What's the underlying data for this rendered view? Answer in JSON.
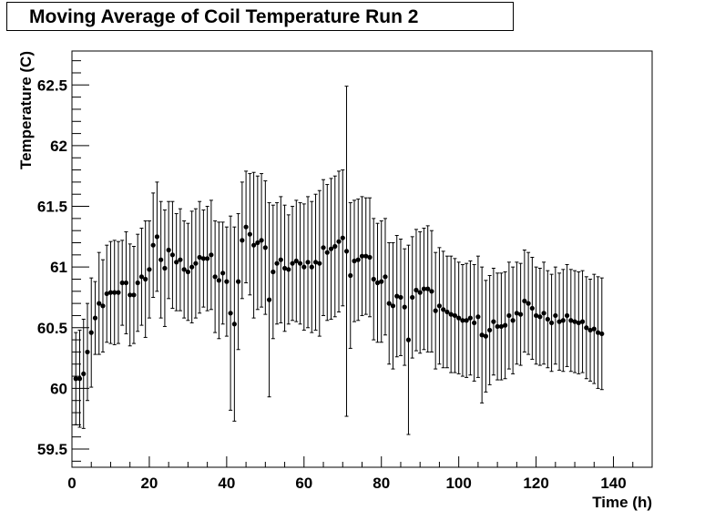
{
  "chart_data": {
    "type": "scatter",
    "title": "Moving Average of Coil Temperature Run 2",
    "xlabel": "Time (h)",
    "ylabel": "Temperature (C)",
    "xlim": [
      0,
      150
    ],
    "ylim": [
      59.35,
      62.78
    ],
    "xticks": [
      "0",
      "20",
      "40",
      "60",
      "80",
      "100",
      "120",
      "140"
    ],
    "yticks": [
      "59.5",
      "60",
      "60.5",
      "61",
      "61.5",
      "62",
      "62.5"
    ],
    "grid": false,
    "series": [
      {
        "marker": "filled-circle",
        "color": "#000000",
        "x": [
          1,
          2,
          3,
          4,
          5,
          6,
          7,
          8,
          9,
          10,
          11,
          12,
          13,
          14,
          15,
          16,
          17,
          18,
          19,
          20,
          21,
          22,
          23,
          24,
          25,
          26,
          27,
          28,
          29,
          30,
          31,
          32,
          33,
          34,
          35,
          36,
          37,
          38,
          39,
          40,
          41,
          42,
          43,
          44,
          45,
          46,
          47,
          48,
          49,
          50,
          51,
          52,
          53,
          54,
          55,
          56,
          57,
          58,
          59,
          60,
          61,
          62,
          63,
          64,
          65,
          66,
          67,
          68,
          69,
          70,
          71,
          72,
          73,
          74,
          75,
          76,
          77,
          78,
          79,
          80,
          81,
          82,
          83,
          84,
          85,
          86,
          87,
          88,
          89,
          90,
          91,
          92,
          93,
          94,
          95,
          96,
          97,
          98,
          99,
          100,
          101,
          102,
          103,
          104,
          105,
          106,
          107,
          108,
          109,
          110,
          111,
          112,
          113,
          114,
          115,
          116,
          117,
          118,
          119,
          120,
          121,
          122,
          123,
          124,
          125,
          126,
          127,
          128,
          129,
          130,
          131,
          132,
          133,
          134,
          135,
          136,
          137
        ],
        "y": [
          60.08,
          60.08,
          60.12,
          60.3,
          60.46,
          60.58,
          60.7,
          60.68,
          60.78,
          60.79,
          60.79,
          60.79,
          60.87,
          60.87,
          60.77,
          60.77,
          60.87,
          60.92,
          60.9,
          60.98,
          61.18,
          61.25,
          61.06,
          60.99,
          61.14,
          61.1,
          61.04,
          61.06,
          60.98,
          60.96,
          61.0,
          61.03,
          61.08,
          61.07,
          61.07,
          61.1,
          60.92,
          60.89,
          60.95,
          60.88,
          60.62,
          60.53,
          60.88,
          61.22,
          61.33,
          61.27,
          61.18,
          61.2,
          61.22,
          61.16,
          60.73,
          60.96,
          61.03,
          61.06,
          60.99,
          60.98,
          61.03,
          61.05,
          61.03,
          61.0,
          61.04,
          61.0,
          61.04,
          61.03,
          61.16,
          61.12,
          61.15,
          61.17,
          61.21,
          61.24,
          61.13,
          60.93,
          61.05,
          61.06,
          61.09,
          61.09,
          61.08,
          60.9,
          60.87,
          60.88,
          60.92,
          60.7,
          60.68,
          60.76,
          60.75,
          60.67,
          60.4,
          60.75,
          60.81,
          60.79,
          60.82,
          60.82,
          60.8,
          60.64,
          60.68,
          60.65,
          60.63,
          60.61,
          60.6,
          60.58,
          60.56,
          60.56,
          60.58,
          60.54,
          60.59,
          60.44,
          60.43,
          60.48,
          60.55,
          60.51,
          60.51,
          60.52,
          60.6,
          60.56,
          60.62,
          60.61,
          60.72,
          60.7,
          60.66,
          60.6,
          60.59,
          60.62,
          60.57,
          60.54,
          60.6,
          60.55,
          60.56,
          60.6,
          60.56,
          60.55,
          60.54,
          60.55,
          60.5,
          60.48,
          60.49,
          60.46,
          60.45
        ],
        "err": [
          0.38,
          0.4,
          0.45,
          0.4,
          0.45,
          0.3,
          0.42,
          0.38,
          0.4,
          0.42,
          0.43,
          0.42,
          0.35,
          0.42,
          0.42,
          0.4,
          0.4,
          0.4,
          0.48,
          0.4,
          0.43,
          0.45,
          0.48,
          0.48,
          0.4,
          0.44,
          0.4,
          0.42,
          0.4,
          0.4,
          0.46,
          0.45,
          0.46,
          0.4,
          0.43,
          0.45,
          0.46,
          0.48,
          0.42,
          0.45,
          0.8,
          0.8,
          0.56,
          0.48,
          0.46,
          0.5,
          0.6,
          0.55,
          0.55,
          0.55,
          0.8,
          0.55,
          0.5,
          0.52,
          0.52,
          0.45,
          0.47,
          0.5,
          0.5,
          0.52,
          0.54,
          0.54,
          0.56,
          0.6,
          0.56,
          0.56,
          0.58,
          0.58,
          0.58,
          0.56,
          1.36,
          0.6,
          0.5,
          0.5,
          0.49,
          0.48,
          0.49,
          0.5,
          0.49,
          0.5,
          0.48,
          0.5,
          0.52,
          0.5,
          0.48,
          0.48,
          0.78,
          0.5,
          0.5,
          0.5,
          0.5,
          0.52,
          0.5,
          0.48,
          0.48,
          0.48,
          0.46,
          0.48,
          0.47,
          0.46,
          0.46,
          0.47,
          0.47,
          0.48,
          0.5,
          0.56,
          0.46,
          0.45,
          0.44,
          0.44,
          0.44,
          0.44,
          0.44,
          0.44,
          0.42,
          0.42,
          0.42,
          0.42,
          0.42,
          0.4,
          0.4,
          0.42,
          0.4,
          0.4,
          0.4,
          0.4,
          0.42,
          0.42,
          0.42,
          0.42,
          0.42,
          0.42,
          0.42,
          0.42,
          0.45,
          0.46,
          0.46
        ]
      }
    ]
  }
}
